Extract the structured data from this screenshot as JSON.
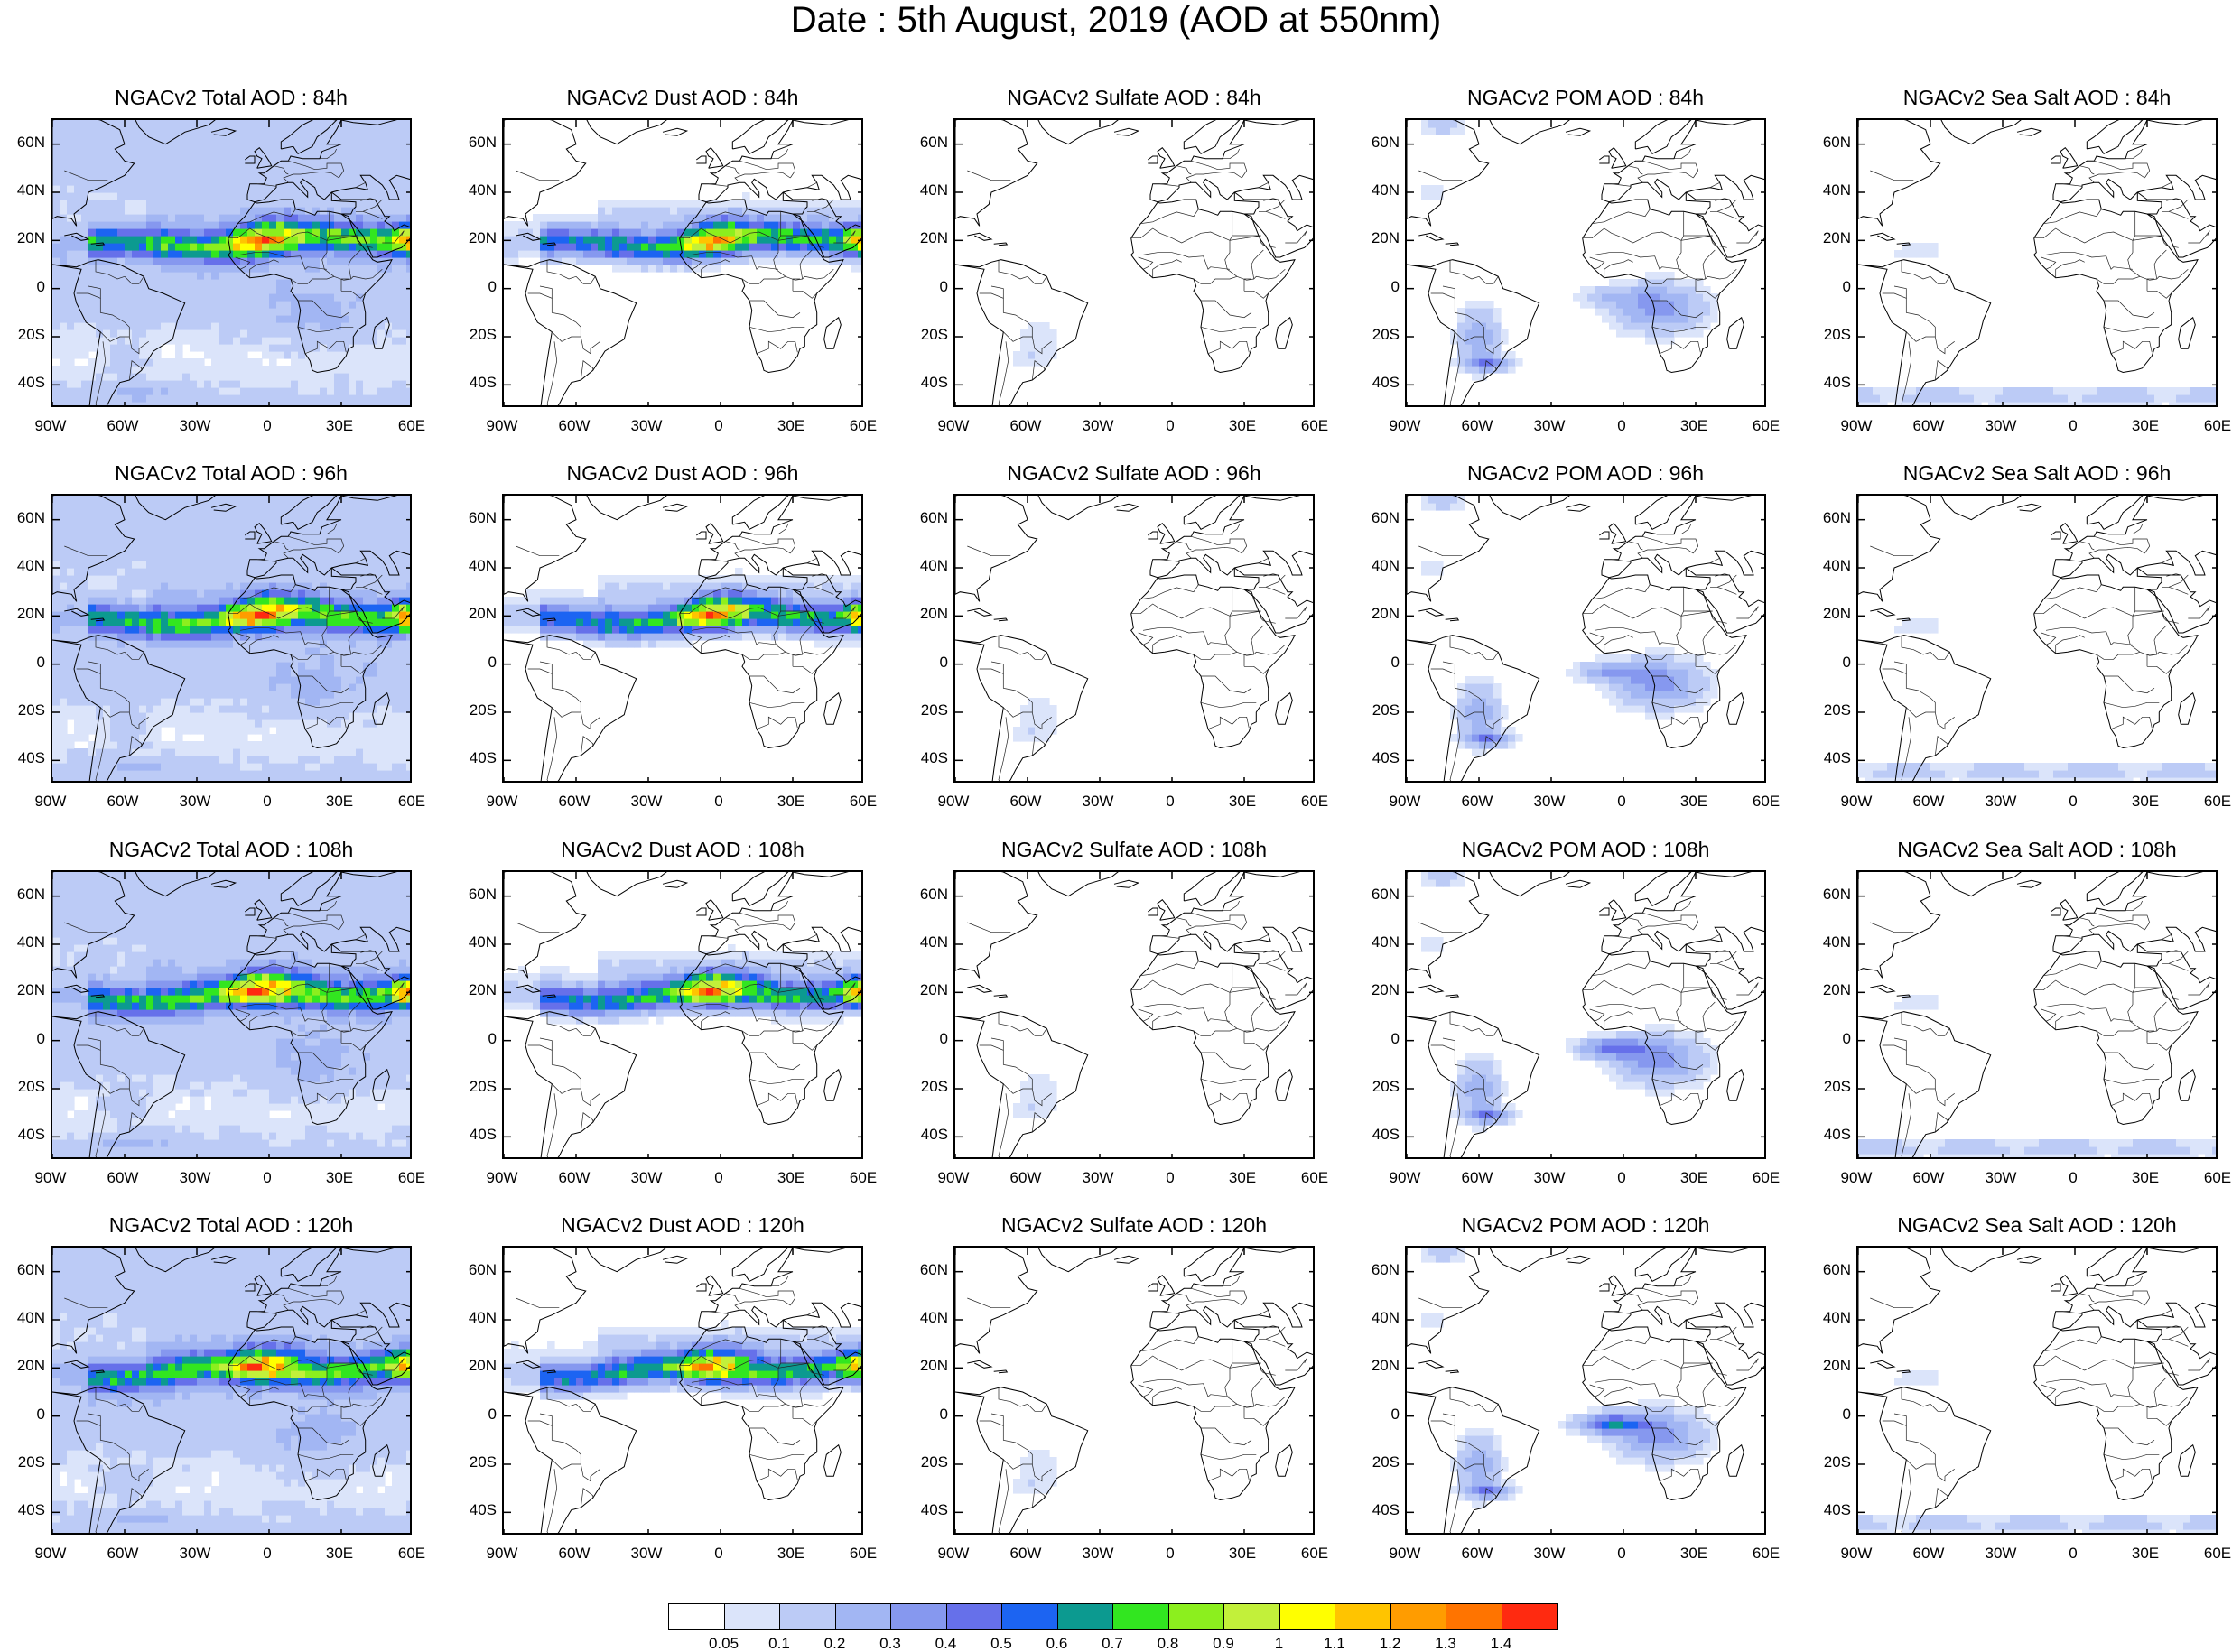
{
  "title": "Date : 5th August, 2019 (AOD at 550nm)",
  "rows": [
    {
      "panels": [
        {
          "title": "NGACv2 Total AOD : 84h",
          "species": "total"
        },
        {
          "title": "NGACv2 Dust AOD : 84h",
          "species": "dust"
        },
        {
          "title": "NGACv2 Sulfate AOD : 84h",
          "species": "sulfate"
        },
        {
          "title": "NGACv2 POM AOD : 84h",
          "species": "pom"
        },
        {
          "title": "NGACv2 Sea Salt AOD : 84h",
          "species": "seasalt"
        }
      ]
    },
    {
      "panels": [
        {
          "title": "NGACv2 Total AOD : 96h",
          "species": "total"
        },
        {
          "title": "NGACv2 Dust AOD : 96h",
          "species": "dust"
        },
        {
          "title": "NGACv2 Sulfate AOD : 96h",
          "species": "sulfate"
        },
        {
          "title": "NGACv2 POM AOD : 96h",
          "species": "pom"
        },
        {
          "title": "NGACv2 Sea Salt AOD : 96h",
          "species": "seasalt"
        }
      ]
    },
    {
      "panels": [
        {
          "title": "NGACv2 Total AOD : 108h",
          "species": "total"
        },
        {
          "title": "NGACv2 Dust AOD : 108h",
          "species": "dust"
        },
        {
          "title": "NGACv2 Sulfate AOD : 108h",
          "species": "sulfate"
        },
        {
          "title": "NGACv2 POM AOD : 108h",
          "species": "pom"
        },
        {
          "title": "NGACv2 Sea Salt AOD : 108h",
          "species": "seasalt"
        }
      ]
    },
    {
      "panels": [
        {
          "title": "NGACv2 Total AOD : 120h",
          "species": "total"
        },
        {
          "title": "NGACv2 Dust AOD : 120h",
          "species": "dust"
        },
        {
          "title": "NGACv2 Sulfate AOD : 120h",
          "species": "sulfate"
        },
        {
          "title": "NGACv2 POM AOD : 120h",
          "species": "pom"
        },
        {
          "title": "NGACv2 Sea Salt  AOD : 120h",
          "species": "seasalt"
        }
      ]
    }
  ],
  "lat_labels": [
    "60N",
    "40N",
    "20N",
    "0",
    "20S",
    "40S"
  ],
  "lon_labels": [
    "90W",
    "60W",
    "30W",
    "0",
    "30E",
    "60E"
  ],
  "colorbar": {
    "labels": [
      "0.05",
      "0.1",
      "0.2",
      "0.3",
      "0.4",
      "0.5",
      "0.6",
      "0.7",
      "0.8",
      "0.9",
      "1",
      "1.1",
      "1.2",
      "1.3",
      "1.4"
    ],
    "colors": [
      "#ffffff",
      "#dbe4fa",
      "#bccbf6",
      "#a2b6f3",
      "#8698ef",
      "#6670ea",
      "#1c64f2",
      "#0c9a90",
      "#32e620",
      "#8cef1e",
      "#c2f03a",
      "#ffff00",
      "#ffc400",
      "#ff9c00",
      "#ff7400",
      "#ff2a10"
    ]
  }
}
